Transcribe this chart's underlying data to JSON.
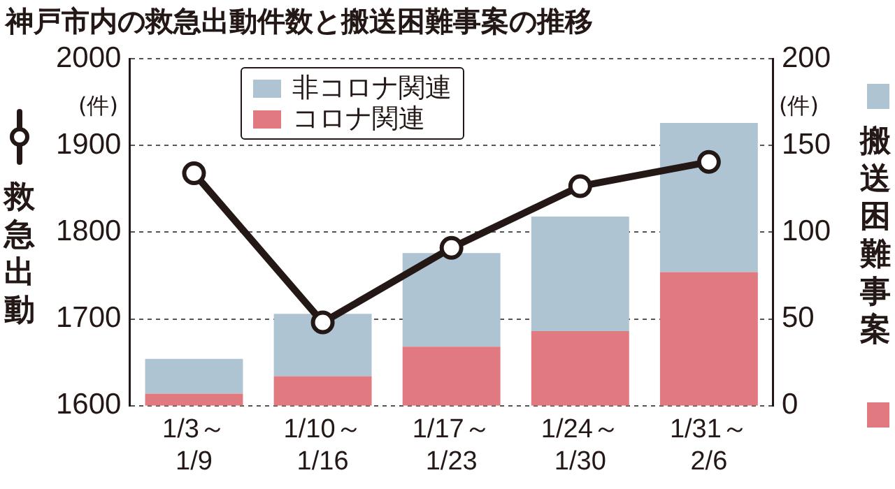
{
  "chart_data": {
    "type": "bar",
    "title": "神戸市内の救急出動件数と搬送困難事案の推移",
    "ylabel": "救急出動",
    "y2label": "搬送困難事案",
    "annotations": [
      "(件)",
      "(件)"
    ],
    "categories": [
      "1/3～\n1/9",
      "1/10～\n1/16",
      "1/17～\n1/23",
      "1/24～\n1/30",
      "1/31～\n2/6"
    ],
    "stacked": true,
    "series": [
      {
        "name": "コロナ関連",
        "color": "#e07a80",
        "axis": "y2",
        "values": [
          7,
          17,
          34,
          43,
          77
        ]
      },
      {
        "name": "非コロナ関連",
        "color": "#afc4d3",
        "axis": "y2",
        "values": [
          20,
          36,
          54,
          66,
          86
        ]
      },
      {
        "type": "line",
        "color": "#231815",
        "axis": "y",
        "marker": "circle",
        "values": [
          1868,
          1696,
          1782,
          1853,
          1881
        ]
      }
    ],
    "ylim": [
      1600,
      2000
    ],
    "yticks": [
      1600,
      1700,
      1800,
      1900,
      2000
    ],
    "y2lim": [
      0,
      200
    ],
    "y2ticks": [
      0,
      50,
      100,
      150,
      200
    ],
    "grid": "y",
    "legend": "top"
  }
}
